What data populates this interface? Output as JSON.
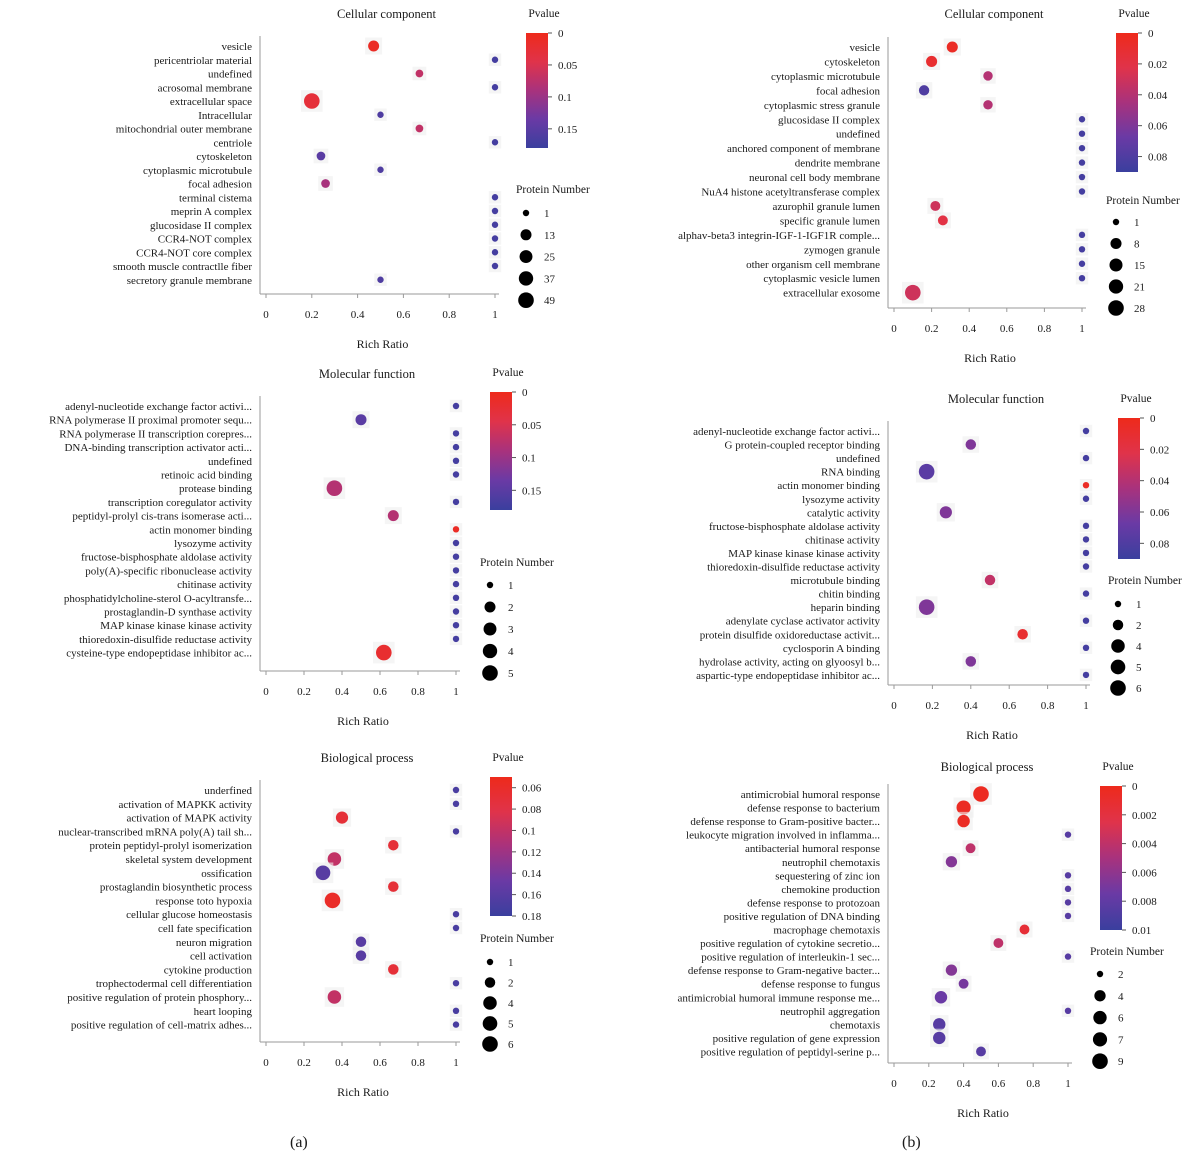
{
  "figure": {
    "panel_labels": [
      "(a)",
      "(b)"
    ],
    "pvalue_gradient_colors": [
      "#ee2a1b",
      "#e0334a",
      "#a8327d",
      "#6a3aa5",
      "#3a3f9e"
    ]
  },
  "chart_data": [
    {
      "type": "scatter",
      "panel": "(a)",
      "title": "Cellular component",
      "xlabel": "Rich Ratio",
      "xticks": [
        "0",
        "0.2",
        "0.4",
        "0.6",
        "0.8",
        "1"
      ],
      "xlim": [
        0,
        1
      ],
      "categories": [
        "vesicle",
        "pericentriolar material",
        "undefined",
        "acrosomal membrane",
        "extracellular space",
        "Intracellular",
        "mitochondrial outer membrane",
        "centriole",
        "cytoskeleton",
        "cytoplasmic microtubule",
        "focal adhesion",
        "terminal cistema",
        "meprin A complex",
        "glucosidase II complex",
        "CCR4-NOT complex",
        "CCR4-NOT core complex",
        "smooth muscle contractlle fiber",
        "secretory granule membrane"
      ],
      "rich_ratio": [
        0.47,
        1,
        0.67,
        1,
        0.2,
        0.5,
        0.67,
        1,
        0.24,
        0.5,
        0.26,
        1,
        1,
        1,
        1,
        1,
        1,
        0.5
      ],
      "pvalue": [
        0.01,
        0.17,
        0.07,
        0.17,
        0.03,
        0.16,
        0.07,
        0.17,
        0.15,
        0.16,
        0.09,
        0.17,
        0.17,
        0.17,
        0.17,
        0.17,
        0.17,
        0.16
      ],
      "protein_number": [
        13,
        1,
        2,
        1,
        49,
        1,
        2,
        1,
        4,
        1,
        4,
        1,
        1,
        1,
        1,
        1,
        1,
        1
      ],
      "color_legend": {
        "title": "Pvalue",
        "ticks": [
          "0",
          "0.05",
          "0.1",
          "0.15"
        ],
        "range": [
          0,
          0.18
        ]
      },
      "size_legend": {
        "title": "Protein Number",
        "labels": [
          "1",
          "13",
          "25",
          "37",
          "49"
        ],
        "values": [
          1,
          13,
          25,
          37,
          49
        ]
      }
    },
    {
      "type": "scatter",
      "panel": "(a)",
      "title": "Molecular function",
      "xlabel": "Rich Ratio",
      "xticks": [
        "0",
        "0.2",
        "0.4",
        "0.6",
        "0.8",
        "1"
      ],
      "xlim": [
        0,
        1
      ],
      "categories": [
        "adenyl-nucleotide exchange factor activi...",
        "RNA polymerase II proximal promoter sequ...",
        "RNA polymerase II transcription corepres...",
        "DNA-binding transcription activator acti...",
        "undefined",
        "retinoic acid binding",
        "protease binding",
        "transcription coregulator activity",
        "peptidyl-prolyl cis-trans isomerase acti...",
        "actin monomer binding",
        "lysozyme activity",
        "fructose-bisphosphate aldolase activity",
        "poly(A)-specific ribonuclease activity",
        "chitinase activity",
        "phosphatidylcholine-sterol O-acyltransfe...",
        "prostaglandin-D synthase activity",
        "MAP kinase kinase kinase activity",
        "thioredoxin-disulfide reductase activity",
        "cysteine-type endopeptidase inhibitor ac..."
      ],
      "rich_ratio": [
        1,
        0.5,
        1,
        1,
        1,
        1,
        0.36,
        1,
        0.67,
        1,
        1,
        1,
        1,
        1,
        1,
        1,
        1,
        1,
        0.62
      ],
      "pvalue": [
        0.17,
        0.15,
        0.17,
        0.17,
        0.17,
        0.17,
        0.08,
        0.17,
        0.08,
        0.01,
        0.17,
        0.17,
        0.17,
        0.17,
        0.17,
        0.17,
        0.17,
        0.17,
        0.02
      ],
      "protein_number": [
        1,
        2,
        1,
        1,
        1,
        1,
        5,
        1,
        2,
        1,
        1,
        1,
        1,
        1,
        1,
        1,
        1,
        1,
        5
      ],
      "color_legend": {
        "title": "Pvalue",
        "ticks": [
          "0",
          "0.05",
          "0.1",
          "0.15"
        ],
        "range": [
          0,
          0.18
        ]
      },
      "size_legend": {
        "title": "Protein Number",
        "labels": [
          "1",
          "2",
          "3",
          "4",
          "5"
        ],
        "values": [
          1,
          2,
          3,
          4,
          5
        ]
      }
    },
    {
      "type": "scatter",
      "panel": "(a)",
      "title": "Biological process",
      "xlabel": "Rich Ratio",
      "xticks": [
        "0",
        "0.2",
        "0.4",
        "0.6",
        "0.8",
        "1"
      ],
      "xlim": [
        0,
        1
      ],
      "categories": [
        "underfined",
        "activation of MAPKK activity",
        "activation of MAPK activity",
        "nuclear-transcribed mRNA poly(A) tail sh...",
        "protein peptidyl-prolyl isomerization",
        "skeletal system development",
        "ossification",
        "prostaglandin biosynthetic process",
        "response toto hypoxia",
        "cellular glucose homeostasis",
        "cell fate specification",
        "neuron migration",
        "cell activation",
        "cytokine production",
        "trophectodermal cell differentiation",
        "positive regulation of protein phosphory...",
        "heart looping",
        "positive regulation of cell-matrix adhes..."
      ],
      "rich_ratio": [
        1,
        1,
        0.4,
        1,
        0.67,
        0.36,
        0.3,
        0.67,
        0.35,
        1,
        1,
        0.5,
        0.5,
        0.67,
        1,
        0.36,
        1,
        1
      ],
      "pvalue": [
        0.17,
        0.17,
        0.07,
        0.17,
        0.07,
        0.1,
        0.16,
        0.07,
        0.06,
        0.17,
        0.17,
        0.16,
        0.16,
        0.07,
        0.17,
        0.1,
        0.17,
        0.17
      ],
      "protein_number": [
        1,
        1,
        3,
        1,
        2,
        4,
        5,
        2,
        6,
        1,
        1,
        2,
        2,
        2,
        1,
        4,
        1,
        1
      ],
      "color_legend": {
        "title": "Pvalue",
        "ticks": [
          "0.06",
          "0.08",
          "0.1",
          "0.12",
          "0.14",
          "0.16",
          "0.18"
        ],
        "range": [
          0.05,
          0.18
        ]
      },
      "size_legend": {
        "title": "Protein Number",
        "labels": [
          "1",
          "2",
          "4",
          "5",
          "6"
        ],
        "values": [
          1,
          2,
          4,
          5,
          6
        ]
      }
    },
    {
      "type": "scatter",
      "panel": "(b)",
      "title": "Cellular component",
      "xlabel": "Rich Ratio",
      "xticks": [
        "0",
        "0.2",
        "0.4",
        "0.6",
        "0.8",
        "1"
      ],
      "xlim": [
        0,
        1
      ],
      "categories": [
        "vesicle",
        "cytoskeleton",
        "cytoplasmic microtubule",
        "focal adhesion",
        "cytoplasmic stress granule",
        "glucosidase II complex",
        "undefined",
        "anchored component of membrane",
        "dendrite membrane",
        "neuronal cell body membrane",
        "NuA4 histone acetyltransferase complex",
        "azurophil granule lumen",
        "specific granule lumen",
        "alphav-beta3 integrin-IGF-1-IGF1R comple...",
        "zymogen granule",
        "other organism cell membrane",
        "cytoplasmic vesicle lumen",
        "extracellular exosome"
      ],
      "rich_ratio": [
        0.31,
        0.2,
        0.5,
        0.16,
        0.5,
        1,
        1,
        1,
        1,
        1,
        1,
        0.22,
        0.26,
        1,
        1,
        1,
        1,
        0.1
      ],
      "pvalue": [
        0.005,
        0.01,
        0.04,
        0.08,
        0.04,
        0.085,
        0.085,
        0.085,
        0.085,
        0.085,
        0.085,
        0.03,
        0.02,
        0.085,
        0.085,
        0.085,
        0.085,
        0.03
      ],
      "protein_number": [
        8,
        8,
        4,
        6,
        4,
        1,
        1,
        1,
        1,
        1,
        1,
        5,
        5,
        1,
        1,
        1,
        1,
        28
      ],
      "color_legend": {
        "title": "Pvalue",
        "ticks": [
          "0",
          "0.02",
          "0.04",
          "0.06",
          "0.08"
        ],
        "range": [
          0,
          0.09
        ]
      },
      "size_legend": {
        "title": "Protein Number",
        "labels": [
          "1",
          "8",
          "15",
          "21",
          "28"
        ],
        "values": [
          1,
          8,
          15,
          21,
          28
        ]
      }
    },
    {
      "type": "scatter",
      "panel": "(b)",
      "title": "Molecular function",
      "xlabel": "Rich Ratio",
      "xticks": [
        "0",
        "0.2",
        "0.4",
        "0.6",
        "0.8",
        "1"
      ],
      "xlim": [
        0,
        1
      ],
      "categories": [
        "adenyl-nucleotide exchange factor activi...",
        "G protein-coupled receptor binding",
        "undefined",
        "RNA binding",
        "actin monomer binding",
        "lysozyme activity",
        "catalytic activity",
        "fructose-bisphosphate aldolase activity",
        "chitinase activity",
        "MAP kinase kinase kinase activity",
        "thioredoxin-disulfide reductase activity",
        "microtubule binding",
        "chitin binding",
        "heparin binding",
        "adenylate cyclase activator activity",
        "protein disulfide oxidoreductase activit...",
        "cyclosporin A binding",
        "hydrolase activity, acting on glyoosyl b...",
        "aspartic-type endopeptidase inhibitor ac..."
      ],
      "rich_ratio": [
        1,
        0.4,
        1,
        0.17,
        1,
        1,
        0.27,
        1,
        1,
        1,
        1,
        0.5,
        1,
        0.17,
        1,
        0.67,
        1,
        0.4,
        1
      ],
      "pvalue": [
        0.085,
        0.06,
        0.085,
        0.075,
        0.005,
        0.085,
        0.06,
        0.085,
        0.085,
        0.085,
        0.085,
        0.035,
        0.085,
        0.06,
        0.085,
        0.01,
        0.085,
        0.06,
        0.085
      ],
      "protein_number": [
        1,
        2,
        1,
        6,
        1,
        1,
        3,
        1,
        1,
        1,
        1,
        2,
        1,
        6,
        1,
        2,
        1,
        2,
        1
      ],
      "color_legend": {
        "title": "Pvalue",
        "ticks": [
          "0",
          "0.02",
          "0.04",
          "0.06",
          "0.08"
        ],
        "range": [
          0,
          0.09
        ]
      },
      "size_legend": {
        "title": "Protein Number",
        "labels": [
          "1",
          "2",
          "4",
          "5",
          "6"
        ],
        "values": [
          1,
          2,
          4,
          5,
          6
        ]
      }
    },
    {
      "type": "scatter",
      "panel": "(b)",
      "title": "Biological process",
      "xlabel": "Rich Ratio",
      "xticks": [
        "0",
        "0.2",
        "0.4",
        "0.6",
        "0.8",
        "1"
      ],
      "xlim": [
        0,
        1
      ],
      "categories": [
        "antimicrobial humoral response",
        "defense response to bacterium",
        "defense response to Gram-positive bacter...",
        "leukocyte migration involved in inflamma...",
        "antibacterial humoral response",
        "neutrophil chemotaxis",
        "sequestering of zinc ion",
        "chemokine production",
        "defense response to protozoan",
        "positive regulation of DNA binding",
        "macrophage chemotaxis",
        "positive regulation of cytokine secretio...",
        "positive regulation of interleukin-1 sec...",
        "defense response to Gram-negative bacter...",
        "defense response to fungus",
        "antimicrobial humoral immune response me...",
        "neutrophil aggregation",
        "chemotaxis",
        "positive regulation of gene expression",
        "positive regulation of peptidyl-serine p..."
      ],
      "rich_ratio": [
        0.5,
        0.4,
        0.4,
        1,
        0.44,
        0.33,
        1,
        1,
        1,
        1,
        0.75,
        0.6,
        1,
        0.33,
        0.4,
        0.27,
        1,
        0.26,
        0.26,
        0.5
      ],
      "pvalue": [
        0.0003,
        0.0005,
        0.0005,
        0.0085,
        0.004,
        0.0065,
        0.0085,
        0.0085,
        0.0085,
        0.0085,
        0.0015,
        0.004,
        0.0085,
        0.0065,
        0.007,
        0.0075,
        0.0085,
        0.0085,
        0.0085,
        0.0085
      ],
      "protein_number": [
        9,
        7,
        5,
        2,
        3,
        4,
        2,
        2,
        2,
        2,
        3,
        3,
        2,
        4,
        3,
        5,
        2,
        5,
        5,
        3
      ],
      "color_legend": {
        "title": "Pvalue",
        "ticks": [
          "0",
          "0.002",
          "0.004",
          "0.006",
          "0.008",
          "0.01"
        ],
        "range": [
          0,
          0.01
        ]
      },
      "size_legend": {
        "title": "Protein Number",
        "labels": [
          "2",
          "4",
          "6",
          "7",
          "9"
        ],
        "values": [
          2,
          4,
          6,
          7,
          9
        ]
      }
    }
  ]
}
